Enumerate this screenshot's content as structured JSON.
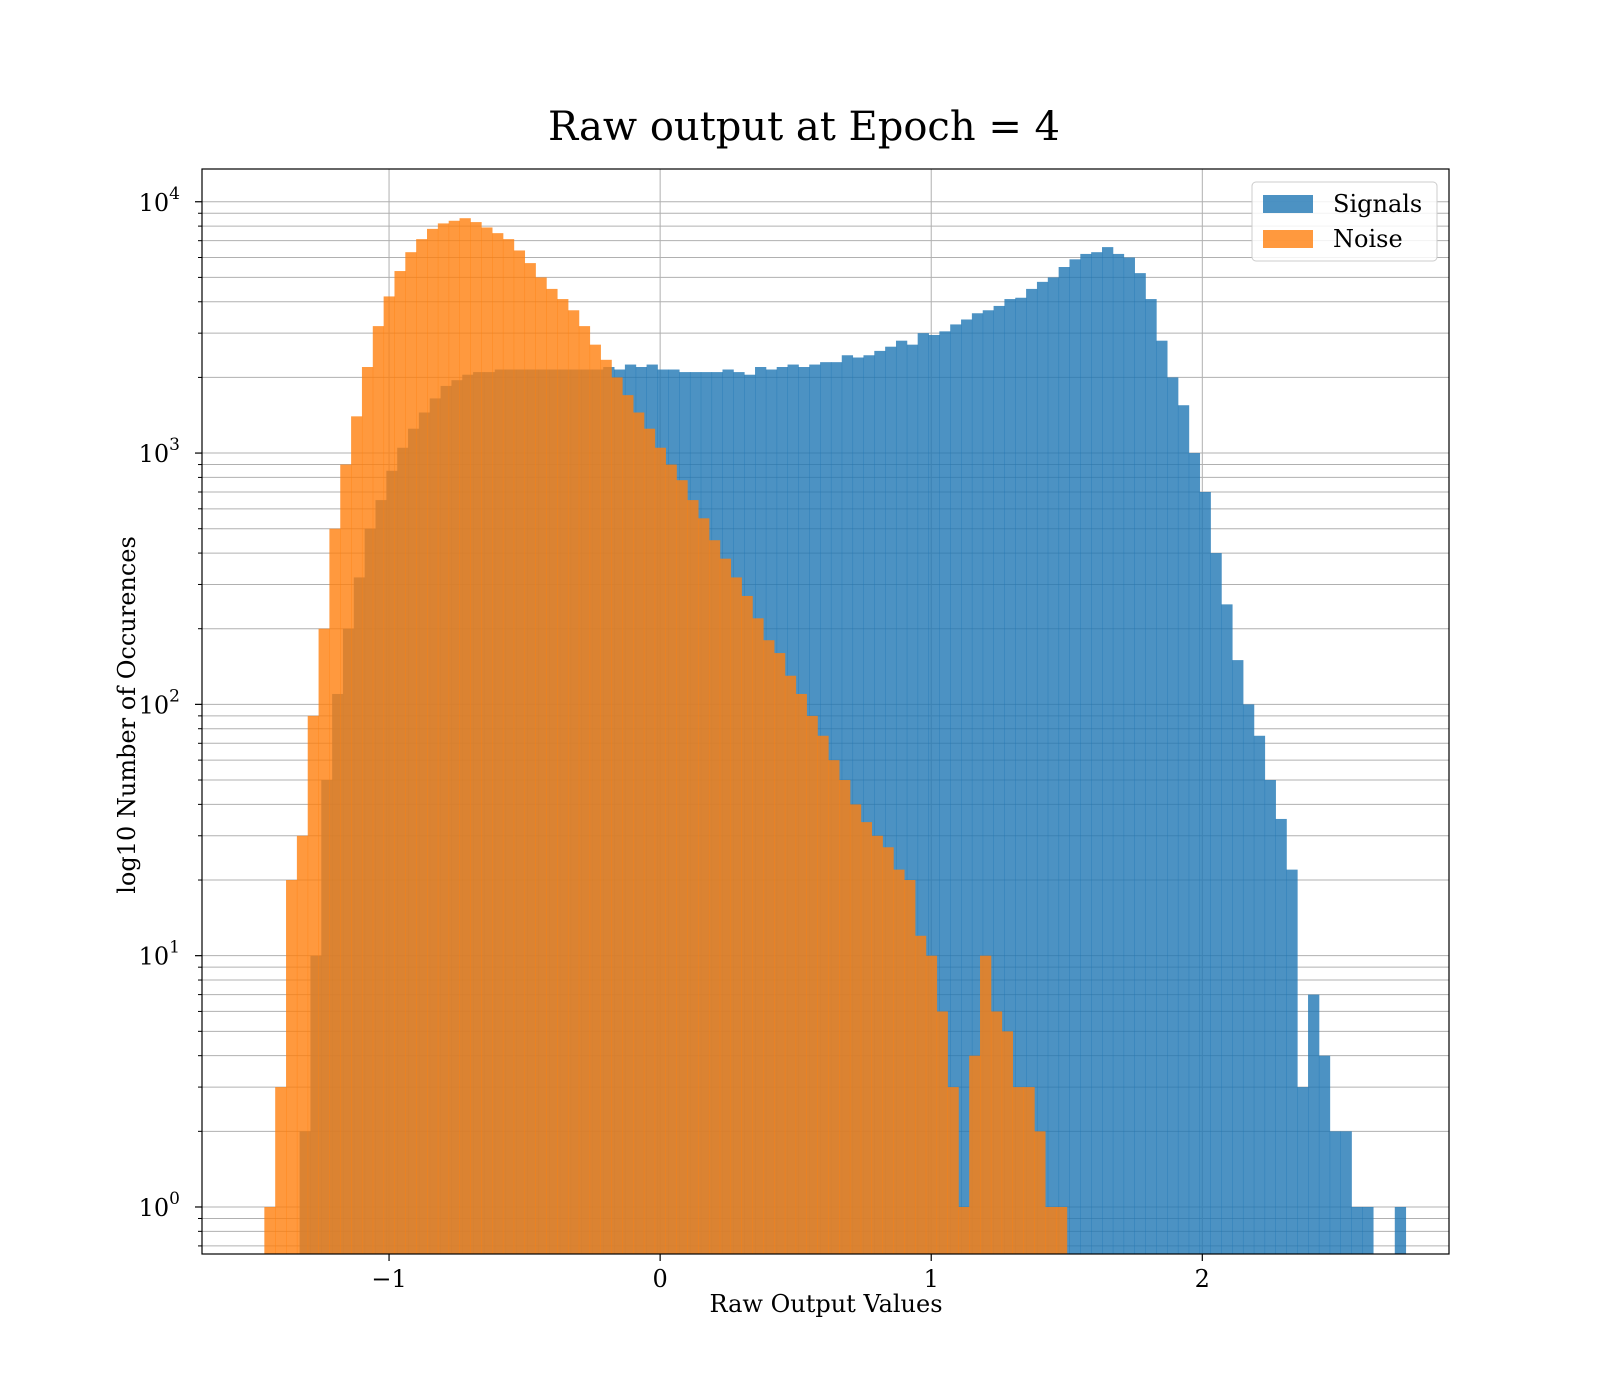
{
  "chart_data": {
    "type": "bar",
    "title": "Raw output at Epoch = 4",
    "xlabel": "Raw Output Values",
    "ylabel": "log10 Number of Occurences",
    "yscale": "log",
    "xlim": [
      -1.69,
      2.91
    ],
    "ylim": [
      0.65,
      13500
    ],
    "xticks": [
      {
        "value": -1,
        "label": "−1"
      },
      {
        "value": 0,
        "label": "0"
      },
      {
        "value": 1,
        "label": "1"
      },
      {
        "value": 2,
        "label": "2"
      }
    ],
    "yticks": [
      {
        "value": 1,
        "base": "10",
        "exp": "0"
      },
      {
        "value": 10,
        "base": "10",
        "exp": "1"
      },
      {
        "value": 100,
        "base": "10",
        "exp": "2"
      },
      {
        "value": 1000,
        "base": "10",
        "exp": "3"
      },
      {
        "value": 10000,
        "base": "10",
        "exp": "4"
      }
    ],
    "grid": true,
    "legend_position": "top-right",
    "series": [
      {
        "name": "Signals",
        "color": "#1f77b4",
        "opacity": 0.8,
        "bin_width": 0.0405,
        "bins": [
          [
            -1.33,
            2
          ],
          [
            -1.29,
            10
          ],
          [
            -1.25,
            50
          ],
          [
            -1.21,
            110
          ],
          [
            -1.17,
            200
          ],
          [
            -1.13,
            320
          ],
          [
            -1.09,
            500
          ],
          [
            -1.05,
            650
          ],
          [
            -1.01,
            850
          ],
          [
            -0.97,
            1050
          ],
          [
            -0.93,
            1250
          ],
          [
            -0.89,
            1450
          ],
          [
            -0.85,
            1650
          ],
          [
            -0.81,
            1850
          ],
          [
            -0.77,
            1950
          ],
          [
            -0.73,
            2050
          ],
          [
            -0.69,
            2100
          ],
          [
            -0.65,
            2100
          ],
          [
            -0.61,
            2150
          ],
          [
            -0.57,
            2150
          ],
          [
            -0.53,
            2150
          ],
          [
            -0.49,
            2150
          ],
          [
            -0.45,
            2150
          ],
          [
            -0.41,
            2150
          ],
          [
            -0.37,
            2150
          ],
          [
            -0.33,
            2150
          ],
          [
            -0.29,
            2150
          ],
          [
            -0.25,
            2150
          ],
          [
            -0.21,
            2200
          ],
          [
            -0.17,
            2150
          ],
          [
            -0.13,
            2250
          ],
          [
            -0.09,
            2200
          ],
          [
            -0.05,
            2250
          ],
          [
            -0.01,
            2150
          ],
          [
            0.03,
            2150
          ],
          [
            0.07,
            2100
          ],
          [
            0.11,
            2100
          ],
          [
            0.15,
            2100
          ],
          [
            0.19,
            2100
          ],
          [
            0.23,
            2150
          ],
          [
            0.27,
            2100
          ],
          [
            0.31,
            2050
          ],
          [
            0.35,
            2200
          ],
          [
            0.39,
            2150
          ],
          [
            0.43,
            2200
          ],
          [
            0.47,
            2250
          ],
          [
            0.51,
            2200
          ],
          [
            0.55,
            2250
          ],
          [
            0.59,
            2300
          ],
          [
            0.63,
            2300
          ],
          [
            0.67,
            2450
          ],
          [
            0.71,
            2400
          ],
          [
            0.75,
            2450
          ],
          [
            0.79,
            2550
          ],
          [
            0.83,
            2650
          ],
          [
            0.87,
            2800
          ],
          [
            0.91,
            2700
          ],
          [
            0.95,
            3000
          ],
          [
            0.99,
            2950
          ],
          [
            1.03,
            3050
          ],
          [
            1.07,
            3250
          ],
          [
            1.11,
            3400
          ],
          [
            1.15,
            3600
          ],
          [
            1.19,
            3700
          ],
          [
            1.23,
            3850
          ],
          [
            1.27,
            4100
          ],
          [
            1.31,
            4150
          ],
          [
            1.35,
            4500
          ],
          [
            1.39,
            4800
          ],
          [
            1.43,
            5000
          ],
          [
            1.47,
            5500
          ],
          [
            1.51,
            5900
          ],
          [
            1.55,
            6200
          ],
          [
            1.59,
            6300
          ],
          [
            1.63,
            6600
          ],
          [
            1.67,
            6200
          ],
          [
            1.71,
            6000
          ],
          [
            1.75,
            5200
          ],
          [
            1.79,
            4100
          ],
          [
            1.83,
            2800
          ],
          [
            1.87,
            2000
          ],
          [
            1.91,
            1550
          ],
          [
            1.95,
            1000
          ],
          [
            1.99,
            700
          ],
          [
            2.03,
            400
          ],
          [
            2.07,
            250
          ],
          [
            2.11,
            150
          ],
          [
            2.15,
            100
          ],
          [
            2.19,
            75
          ],
          [
            2.23,
            50
          ],
          [
            2.27,
            35
          ],
          [
            2.31,
            22
          ],
          [
            2.35,
            3
          ],
          [
            2.39,
            7
          ],
          [
            2.43,
            4
          ],
          [
            2.47,
            2
          ],
          [
            2.51,
            2
          ],
          [
            2.55,
            1
          ],
          [
            2.59,
            1
          ],
          [
            2.71,
            1
          ]
        ]
      },
      {
        "name": "Noise",
        "color": "#ff7f0e",
        "opacity": 0.8,
        "bin_width": 0.0405,
        "bins": [
          [
            -1.46,
            1
          ],
          [
            -1.42,
            3
          ],
          [
            -1.38,
            20
          ],
          [
            -1.34,
            30
          ],
          [
            -1.3,
            90
          ],
          [
            -1.26,
            200
          ],
          [
            -1.22,
            500
          ],
          [
            -1.18,
            900
          ],
          [
            -1.14,
            1400
          ],
          [
            -1.1,
            2200
          ],
          [
            -1.06,
            3200
          ],
          [
            -1.02,
            4200
          ],
          [
            -0.98,
            5300
          ],
          [
            -0.94,
            6300
          ],
          [
            -0.9,
            7100
          ],
          [
            -0.86,
            7800
          ],
          [
            -0.82,
            8200
          ],
          [
            -0.78,
            8400
          ],
          [
            -0.74,
            8600
          ],
          [
            -0.7,
            8300
          ],
          [
            -0.66,
            7900
          ],
          [
            -0.62,
            7500
          ],
          [
            -0.58,
            7100
          ],
          [
            -0.54,
            6400
          ],
          [
            -0.5,
            5700
          ],
          [
            -0.46,
            5000
          ],
          [
            -0.42,
            4500
          ],
          [
            -0.38,
            4100
          ],
          [
            -0.34,
            3700
          ],
          [
            -0.3,
            3200
          ],
          [
            -0.26,
            2700
          ],
          [
            -0.22,
            2350
          ],
          [
            -0.18,
            2000
          ],
          [
            -0.14,
            1700
          ],
          [
            -0.1,
            1450
          ],
          [
            -0.06,
            1250
          ],
          [
            -0.02,
            1050
          ],
          [
            0.02,
            900
          ],
          [
            0.06,
            780
          ],
          [
            0.1,
            650
          ],
          [
            0.14,
            550
          ],
          [
            0.18,
            450
          ],
          [
            0.22,
            380
          ],
          [
            0.26,
            320
          ],
          [
            0.3,
            270
          ],
          [
            0.34,
            220
          ],
          [
            0.38,
            180
          ],
          [
            0.42,
            160
          ],
          [
            0.46,
            130
          ],
          [
            0.5,
            110
          ],
          [
            0.54,
            90
          ],
          [
            0.58,
            75
          ],
          [
            0.62,
            60
          ],
          [
            0.66,
            50
          ],
          [
            0.7,
            40
          ],
          [
            0.74,
            34
          ],
          [
            0.78,
            30
          ],
          [
            0.82,
            27
          ],
          [
            0.86,
            22
          ],
          [
            0.9,
            20
          ],
          [
            0.94,
            12
          ],
          [
            0.98,
            10
          ],
          [
            1.02,
            6
          ],
          [
            1.06,
            3
          ],
          [
            1.1,
            1
          ],
          [
            1.14,
            4
          ],
          [
            1.18,
            10
          ],
          [
            1.22,
            6
          ],
          [
            1.26,
            5
          ],
          [
            1.3,
            3
          ],
          [
            1.34,
            3
          ],
          [
            1.38,
            2
          ],
          [
            1.42,
            1
          ],
          [
            1.46,
            1
          ]
        ]
      }
    ]
  }
}
